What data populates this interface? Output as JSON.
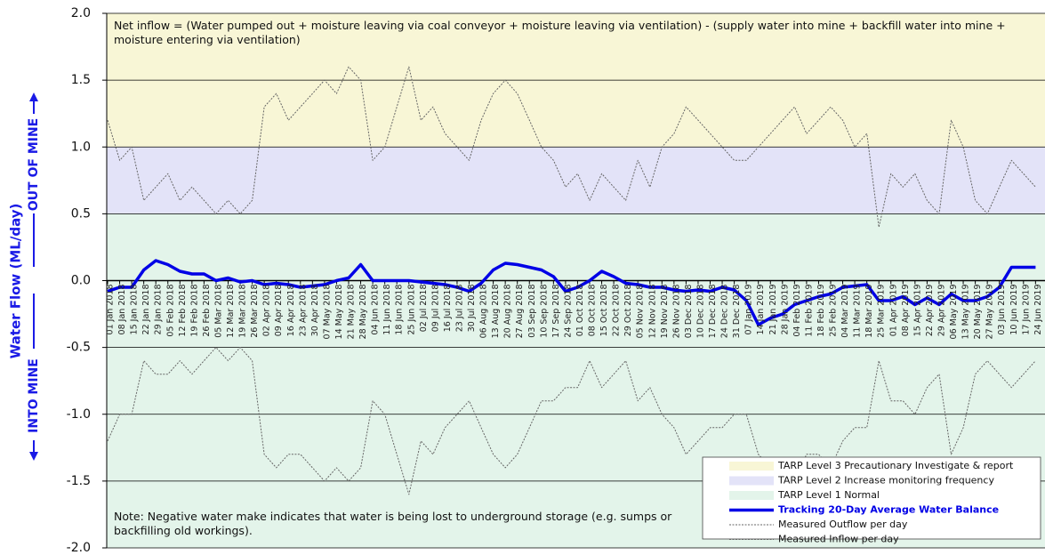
{
  "chart_data": {
    "type": "line",
    "y_axis_label": "Water Flow (ML/day)",
    "direction_labels": {
      "up": "OUT OF MINE",
      "down": "INTO MINE"
    },
    "annotations": [
      "Net inflow = (Water pumped out + moisture leaving via coal conveyor + moisture leaving via ventilation) - (supply water into mine + backfill water into mine + moisture entering via ventilation)",
      "Note: Negative water make indicates that water is being lost to underground storage (e.g. sumps or backfilling old workings)."
    ],
    "ylim": [
      -2.0,
      2.0
    ],
    "yticks": [
      {
        "value": 2,
        "label": "2.0"
      },
      1.5,
      {
        "value": 1,
        "label": "1.0"
      },
      0.5,
      {
        "value": 0,
        "label": "0.0"
      },
      -0.5,
      {
        "value": -1,
        "label": "-1.0"
      },
      -1.5,
      {
        "value": -2,
        "label": "-2.0"
      }
    ],
    "grid": true,
    "legend": "lower right",
    "bands": [
      {
        "name": "TARP Level 3 Precautionary Investigate & report",
        "color": "#f8f6d6",
        "range": [
          1.0,
          2.0
        ]
      },
      {
        "name": "TARP Level 2 Increase monitoring frequency",
        "color": "#e3e3f8",
        "range": [
          0.5,
          1.0
        ]
      },
      {
        "name": "TARP Level 1 Normal",
        "color": "#e3f4ea",
        "range": [
          -2.0,
          0.5
        ]
      }
    ],
    "categories": [
      "01 Jan 2018",
      "08 Jan 2018",
      "15 Jan 2018",
      "22 Jan 2018",
      "29 Jan 2018",
      "05 Feb 2018",
      "12 Feb 2018",
      "19 Feb 2018",
      "26 Feb 2018",
      "05 Mar 2018",
      "12 Mar 2018",
      "19 Mar 2018",
      "26 Mar 2018",
      "02 Apr 2018",
      "09 Apr 2018",
      "16 Apr 2018",
      "23 Apr 2018",
      "30 Apr 2018",
      "07 May 2018",
      "14 May 2018",
      "21 May 2018",
      "28 May 2018",
      "04 Jun 2018",
      "11 Jun 2018",
      "18 Jun 2018",
      "25 Jun 2018",
      "02 Jul 2018",
      "09 Jul 2018",
      "16 Jul 2018",
      "23 Jul 2018",
      "30 Jul 2018",
      "06 Aug 2018",
      "13 Aug 2018",
      "20 Aug 2018",
      "27 Aug 2018",
      "03 Sep 2018",
      "10 Sep 2018",
      "17 Sep 2018",
      "24 Sep 2018",
      "01 Oct 2018",
      "08 Oct 2018",
      "15 Oct 2018",
      "22 Oct 2018",
      "29 Oct 2018",
      "05 Nov 2018",
      "12 Nov 2018",
      "19 Nov 2018",
      "26 Nov 2018",
      "03 Dec 2018",
      "10 Dec 2018",
      "17 Dec 2018",
      "24 Dec 2018",
      "31 Dec 2018",
      "07 Jan 2019",
      "14 Jan 2019",
      "21 Jan 2019",
      "28 Jan 2019",
      "04 Feb 2019",
      "11 Feb 2019",
      "18 Feb 2019",
      "25 Feb 2019",
      "04 Mar 2019",
      "11 Mar 2019",
      "18 Mar 2019",
      "25 Mar 2019",
      "01 Apr 2019",
      "08 Apr 2019",
      "15 Apr 2019",
      "22 Apr 2019",
      "29 Apr 2019",
      "06 May 2019",
      "13 May 2019",
      "20 May 2019",
      "27 May 2019",
      "03 Jun 2019",
      "10 Jun 2019",
      "17 Jun 2019",
      "24 Jun 2019"
    ],
    "series": [
      {
        "name": "Tracking 20-Day Average Water Balance",
        "color": "#0000e6",
        "width": 3.5,
        "dashed": false,
        "values": [
          -0.08,
          -0.05,
          -0.05,
          0.08,
          0.15,
          0.12,
          0.07,
          0.05,
          0.05,
          0.0,
          0.02,
          -0.01,
          0.0,
          -0.03,
          -0.02,
          -0.03,
          -0.05,
          -0.04,
          -0.03,
          0.0,
          0.02,
          0.12,
          0.0,
          0.0,
          0.0,
          0.0,
          -0.01,
          -0.02,
          -0.03,
          -0.05,
          -0.08,
          -0.02,
          0.08,
          0.13,
          0.12,
          0.1,
          0.08,
          0.03,
          -0.08,
          -0.05,
          0.0,
          0.07,
          0.03,
          -0.02,
          -0.03,
          -0.05,
          -0.05,
          -0.07,
          -0.08,
          -0.07,
          -0.08,
          -0.05,
          -0.07,
          -0.15,
          -0.33,
          -0.28,
          -0.25,
          -0.18,
          -0.15,
          -0.12,
          -0.1,
          -0.05,
          -0.04,
          -0.03,
          -0.15,
          -0.15,
          -0.12,
          -0.18,
          -0.13,
          -0.18,
          -0.1,
          -0.15,
          -0.15,
          -0.12,
          -0.05,
          0.1,
          0.1,
          0.1
        ]
      },
      {
        "name": "Measured Outflow per day",
        "color": "#666666",
        "width": 1,
        "dashed": true,
        "values": [
          1.2,
          0.9,
          1.0,
          0.6,
          0.7,
          0.8,
          0.6,
          0.7,
          0.6,
          0.5,
          0.6,
          0.5,
          0.6,
          1.3,
          1.4,
          1.2,
          1.3,
          1.4,
          1.5,
          1.4,
          1.6,
          1.5,
          0.9,
          1.0,
          1.3,
          1.6,
          1.2,
          1.3,
          1.1,
          1.0,
          0.9,
          1.2,
          1.4,
          1.5,
          1.4,
          1.2,
          1.0,
          0.9,
          0.7,
          0.8,
          0.6,
          0.8,
          0.7,
          0.6,
          0.9,
          0.7,
          1.0,
          1.1,
          1.3,
          1.2,
          1.1,
          1.0,
          0.9,
          0.9,
          1.0,
          1.1,
          1.2,
          1.3,
          1.1,
          1.2,
          1.3,
          1.2,
          1.0,
          1.1,
          0.4,
          0.8,
          0.7,
          0.8,
          0.6,
          0.5,
          1.2,
          1.0,
          0.6,
          0.5,
          0.7,
          0.9,
          0.8,
          0.7
        ]
      },
      {
        "name": "Measured Inflow per day",
        "color": "#666666",
        "width": 1,
        "dashed": true,
        "values": [
          -1.2,
          -1.0,
          -1.0,
          -0.6,
          -0.7,
          -0.7,
          -0.6,
          -0.7,
          -0.6,
          -0.5,
          -0.6,
          -0.5,
          -0.6,
          -1.3,
          -1.4,
          -1.3,
          -1.3,
          -1.4,
          -1.5,
          -1.4,
          -1.5,
          -1.4,
          -0.9,
          -1.0,
          -1.3,
          -1.6,
          -1.2,
          -1.3,
          -1.1,
          -1.0,
          -0.9,
          -1.1,
          -1.3,
          -1.4,
          -1.3,
          -1.1,
          -0.9,
          -0.9,
          -0.8,
          -0.8,
          -0.6,
          -0.8,
          -0.7,
          -0.6,
          -0.9,
          -0.8,
          -1.0,
          -1.1,
          -1.3,
          -1.2,
          -1.1,
          -1.1,
          -1.0,
          -1.0,
          -1.3,
          -1.4,
          -1.4,
          -1.5,
          -1.3,
          -1.3,
          -1.4,
          -1.2,
          -1.1,
          -1.1,
          -0.6,
          -0.9,
          -0.9,
          -1.0,
          -0.8,
          -0.7,
          -1.3,
          -1.1,
          -0.7,
          -0.6,
          -0.7,
          -0.8,
          -0.7,
          -0.6
        ]
      }
    ]
  }
}
